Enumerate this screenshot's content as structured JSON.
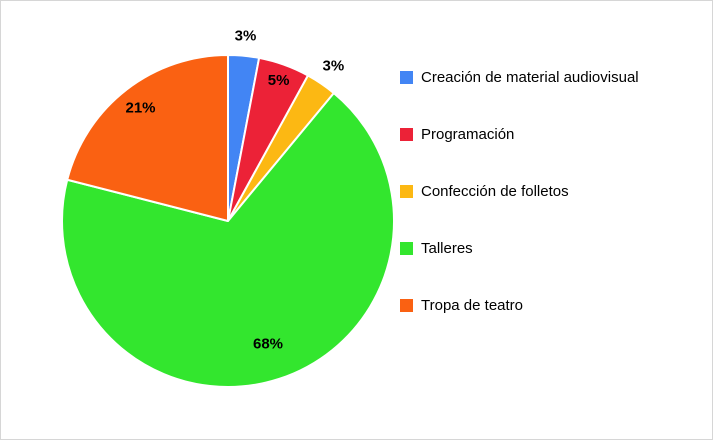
{
  "chart_data": {
    "type": "pie",
    "title": "",
    "unit": "%",
    "legend_position": "right",
    "start_angle_deg": 0,
    "direction": "clockwise",
    "slices": [
      {
        "label": "Creación de material audiovisual",
        "value": 3,
        "display": "3%",
        "color": "#4285F4"
      },
      {
        "label": "Programación",
        "value": 5,
        "display": "5%",
        "color": "#EC2237"
      },
      {
        "label": "Confección de folletos",
        "value": 3,
        "display": "3%",
        "color": "#FCB813"
      },
      {
        "label": "Talleres",
        "value": 68,
        "display": "68%",
        "color": "#33E62E"
      },
      {
        "label": "Tropa de teatro",
        "value": 21,
        "display": "21%",
        "color": "#FA6112"
      }
    ]
  }
}
